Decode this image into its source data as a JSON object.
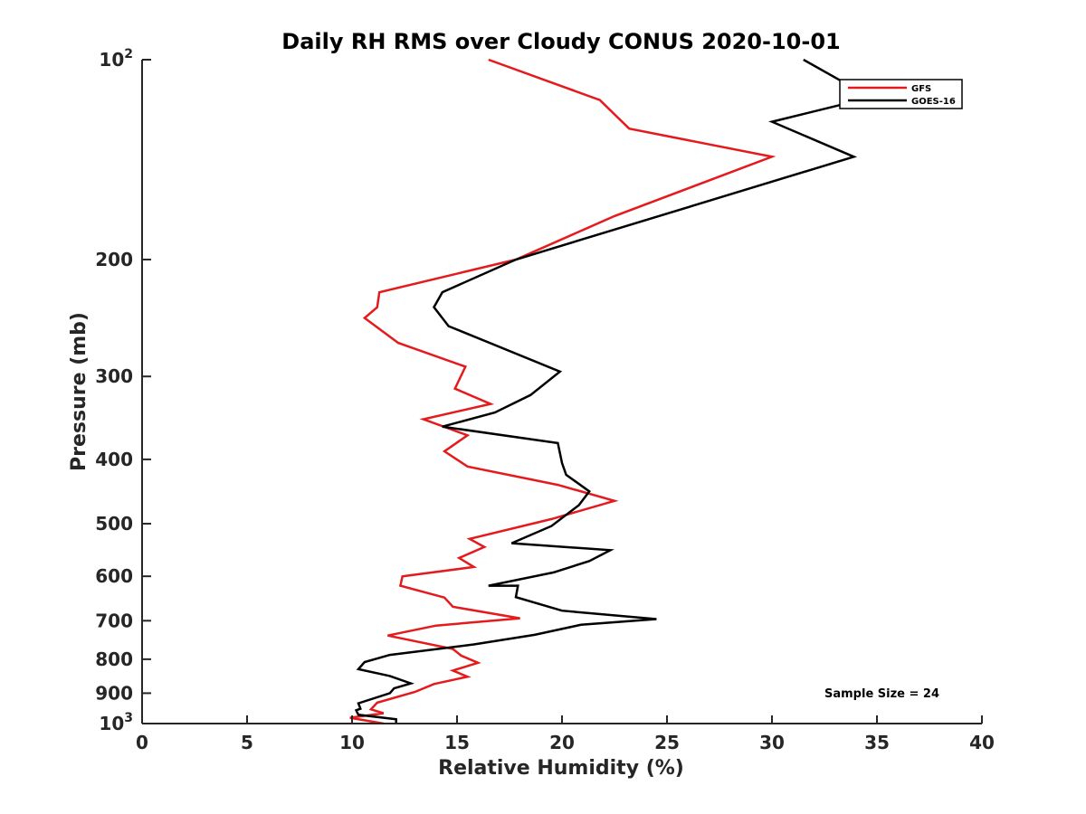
{
  "chart_data": {
    "type": "line",
    "title": "Daily RH RMS over Cloudy CONUS 2020-10-01",
    "xlabel": "Relative Humidity (%)",
    "ylabel": "Pressure (mb)",
    "xlim": [
      0,
      40
    ],
    "ylim": [
      100,
      1000
    ],
    "yscale": "log",
    "y_reversed": true,
    "x_ticks": [
      "0",
      "5",
      "10",
      "15",
      "20",
      "25",
      "30",
      "35",
      "40"
    ],
    "x_tick_values": [
      0,
      5,
      10,
      15,
      20,
      25,
      30,
      35,
      40
    ],
    "y_ticks": [
      {
        "value": 100,
        "base": "10",
        "exp": "2"
      },
      {
        "value": 200,
        "label": "200"
      },
      {
        "value": 300,
        "label": "300"
      },
      {
        "value": 400,
        "label": "400"
      },
      {
        "value": 500,
        "label": "500"
      },
      {
        "value": 600,
        "label": "600"
      },
      {
        "value": 700,
        "label": "700"
      },
      {
        "value": 800,
        "label": "800"
      },
      {
        "value": 900,
        "label": "900"
      },
      {
        "value": 1000,
        "base": "10",
        "exp": "3"
      }
    ],
    "grid": false,
    "legend_position": "top-right",
    "annotation": "Sample Size = 24",
    "series": [
      {
        "name": "GFS",
        "color": "#e41a1c",
        "x": [
          16.5,
          21.8,
          23.2,
          30.0,
          22.5,
          17.8,
          11.3,
          11.2,
          10.6,
          12.2,
          15.4,
          14.9,
          16.6,
          13.4,
          15.5,
          14.4,
          15.5,
          19.8,
          22.5,
          19.5,
          15.6,
          16.3,
          15.1,
          15.8,
          12.4,
          12.3,
          14.4,
          14.8,
          18.0,
          14.0,
          11.7,
          14.8,
          15.2,
          16.0,
          14.8,
          15.5,
          13.9,
          13.0,
          11.2,
          10.9,
          11.5,
          9.9,
          11.5
        ],
        "y": [
          100,
          115,
          127,
          140,
          172,
          200,
          224,
          236,
          245,
          267,
          290,
          313,
          330,
          348,
          368,
          389,
          410,
          437,
          462,
          492,
          527,
          542,
          563,
          581,
          600,
          620,
          646,
          667,
          694,
          712,
          737,
          772,
          790,
          810,
          832,
          850,
          872,
          896,
          930,
          952,
          965,
          980,
          1000
        ]
      },
      {
        "name": "GOES-16",
        "color": "#000000",
        "x": [
          31.5,
          34.7,
          30.0,
          33.9,
          26.5,
          17.8,
          14.3,
          13.9,
          14.6,
          19.9,
          18.5,
          16.8,
          14.3,
          19.8,
          20.0,
          20.2,
          21.3,
          20.8,
          19.5,
          17.6,
          22.3,
          21.3,
          19.6,
          16.5,
          17.9,
          17.8,
          20.0,
          24.5,
          20.9,
          18.7,
          15.8,
          11.8,
          10.6,
          10.3,
          11.8,
          12.8,
          12.0,
          11.8,
          10.3,
          10.4,
          10.2,
          10.3,
          12.1,
          12.1
        ],
        "y": [
          100,
          114,
          124,
          140,
          165,
          200,
          224,
          236,
          252,
          295,
          320,
          340,
          357,
          378,
          405,
          422,
          447,
          469,
          504,
          535,
          548,
          569,
          592,
          620,
          620,
          645,
          676,
          696,
          710,
          735,
          760,
          788,
          808,
          828,
          848,
          870,
          885,
          900,
          932,
          950,
          955,
          970,
          985,
          1000
        ]
      }
    ]
  }
}
